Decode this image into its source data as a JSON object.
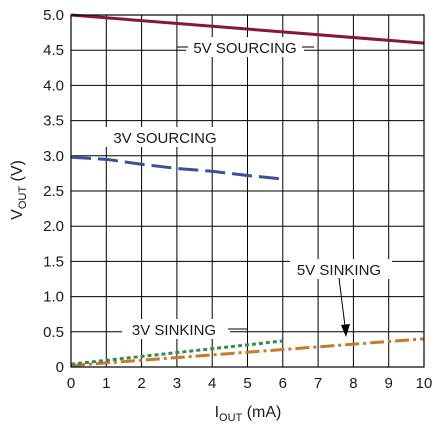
{
  "chart_data": {
    "type": "line",
    "x_ticks": [
      "0",
      "1",
      "2",
      "3",
      "4",
      "5",
      "6",
      "7",
      "8",
      "9",
      "10"
    ],
    "y_ticks": [
      "0",
      "0.5",
      "1.0",
      "1.5",
      "2.0",
      "2.5",
      "3.0",
      "3.5",
      "4.0",
      "4.5",
      "5.0"
    ],
    "xlim": [
      0,
      10
    ],
    "ylim": [
      0,
      5
    ],
    "grid": true,
    "xlabel": {
      "main": "I",
      "sub": "OUT",
      "rest": " (mA)"
    },
    "ylabel": {
      "main": "V",
      "sub": "OUT",
      "rest": " (V)"
    },
    "series": [
      {
        "name": "5V SOURCING",
        "color": "#8a1538",
        "dash": "solid",
        "x": [
          0,
          10
        ],
        "y": [
          5.0,
          4.6
        ]
      },
      {
        "name": "3V SOURCING",
        "color": "#3c4f9a",
        "dash": "long-dash",
        "x": [
          0,
          1,
          2,
          3,
          4,
          5,
          6
        ],
        "y": [
          2.98,
          2.95,
          2.88,
          2.82,
          2.78,
          2.72,
          2.67
        ]
      },
      {
        "name": "5V SINKING",
        "color": "#c77a2a",
        "dash": "dash-dot",
        "x": [
          0,
          10
        ],
        "y": [
          0.02,
          0.4
        ]
      },
      {
        "name": "3V SINKING",
        "color": "#3a8a4a",
        "dash": "dotted",
        "x": [
          0,
          6
        ],
        "y": [
          0.04,
          0.37
        ]
      }
    ],
    "annotations": [
      {
        "text": "5V SOURCING"
      },
      {
        "text": "3V SOURCING"
      },
      {
        "text": "5V SINKING"
      },
      {
        "text": "3V SINKING"
      }
    ]
  }
}
